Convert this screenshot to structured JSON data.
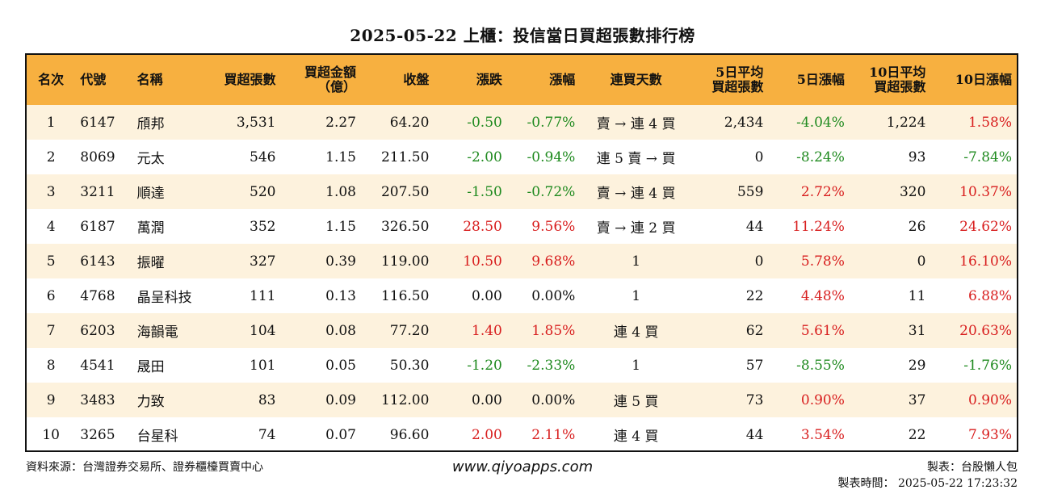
{
  "title": "2025-05-22 上櫃：投信當日買超張數排行榜",
  "headers": [
    {
      "text": "名次",
      "align": "c"
    },
    {
      "text": "代號",
      "align": "l"
    },
    {
      "text": "名稱",
      "align": "l"
    },
    {
      "text": "買超張數",
      "align": "r"
    },
    {
      "text": "買超金額\n（億）",
      "align": "r"
    },
    {
      "text": "收盤",
      "align": "r"
    },
    {
      "text": "漲跌",
      "align": "r"
    },
    {
      "text": "漲幅",
      "align": "r"
    },
    {
      "text": "連買天數",
      "align": "c"
    },
    {
      "text": "5日平均\n買超張數",
      "align": "r"
    },
    {
      "text": "5日漲幅",
      "align": "r"
    },
    {
      "text": "10日平均\n買超張數",
      "align": "r"
    },
    {
      "text": "10日漲幅",
      "align": "r"
    }
  ],
  "colors": {
    "up": "#d81e1e",
    "down": "#1f8a1f",
    "flat": "#111111"
  },
  "rows": [
    {
      "rank": "1",
      "code": "6147",
      "name": "頎邦",
      "vol": "3,531",
      "amt": "2.27",
      "close": "64.20",
      "chg": "-0.50",
      "pct": "-0.77%",
      "days": "賣 → 連 4 買",
      "avg5": "2,434",
      "pct5": "-4.04%",
      "avg10": "1,224",
      "pct10": "1.58%"
    },
    {
      "rank": "2",
      "code": "8069",
      "name": "元太",
      "vol": "546",
      "amt": "1.15",
      "close": "211.50",
      "chg": "-2.00",
      "pct": "-0.94%",
      "days": "連 5 賣 → 買",
      "avg5": "0",
      "pct5": "-8.24%",
      "avg10": "93",
      "pct10": "-7.84%"
    },
    {
      "rank": "3",
      "code": "3211",
      "name": "順達",
      "vol": "520",
      "amt": "1.08",
      "close": "207.50",
      "chg": "-1.50",
      "pct": "-0.72%",
      "days": "賣 → 連 4 買",
      "avg5": "559",
      "pct5": "2.72%",
      "avg10": "320",
      "pct10": "10.37%"
    },
    {
      "rank": "4",
      "code": "6187",
      "name": "萬潤",
      "vol": "352",
      "amt": "1.15",
      "close": "326.50",
      "chg": "28.50",
      "pct": "9.56%",
      "days": "賣 → 連 2 買",
      "avg5": "44",
      "pct5": "11.24%",
      "avg10": "26",
      "pct10": "24.62%"
    },
    {
      "rank": "5",
      "code": "6143",
      "name": "振曜",
      "vol": "327",
      "amt": "0.39",
      "close": "119.00",
      "chg": "10.50",
      "pct": "9.68%",
      "days": "1",
      "avg5": "0",
      "pct5": "5.78%",
      "avg10": "0",
      "pct10": "16.10%"
    },
    {
      "rank": "6",
      "code": "4768",
      "name": "晶呈科技",
      "vol": "111",
      "amt": "0.13",
      "close": "116.50",
      "chg": "0.00",
      "pct": "0.00%",
      "days": "1",
      "avg5": "22",
      "pct5": "4.48%",
      "avg10": "11",
      "pct10": "6.88%"
    },
    {
      "rank": "7",
      "code": "6203",
      "name": "海韻電",
      "vol": "104",
      "amt": "0.08",
      "close": "77.20",
      "chg": "1.40",
      "pct": "1.85%",
      "days": "連 4 買",
      "avg5": "62",
      "pct5": "5.61%",
      "avg10": "31",
      "pct10": "20.63%"
    },
    {
      "rank": "8",
      "code": "4541",
      "name": "晟田",
      "vol": "101",
      "amt": "0.05",
      "close": "50.30",
      "chg": "-1.20",
      "pct": "-2.33%",
      "days": "1",
      "avg5": "57",
      "pct5": "-8.55%",
      "avg10": "29",
      "pct10": "-1.76%"
    },
    {
      "rank": "9",
      "code": "3483",
      "name": "力致",
      "vol": "83",
      "amt": "0.09",
      "close": "112.00",
      "chg": "0.00",
      "pct": "0.00%",
      "days": "連 5 買",
      "avg5": "73",
      "pct5": "0.90%",
      "avg10": "37",
      "pct10": "0.90%"
    },
    {
      "rank": "10",
      "code": "3265",
      "name": "台星科",
      "vol": "74",
      "amt": "0.07",
      "close": "96.60",
      "chg": "2.00",
      "pct": "2.11%",
      "days": "連 4 買",
      "avg5": "44",
      "pct5": "3.54%",
      "avg10": "22",
      "pct10": "7.93%"
    }
  ],
  "footer": {
    "source": "資料來源：台灣證券交易所、證券櫃檯買賣中心",
    "site": "www.qiyoapps.com",
    "maker": "製表：台股懶人包",
    "time": "製表時間： 2025-05-22 17:23:32"
  }
}
